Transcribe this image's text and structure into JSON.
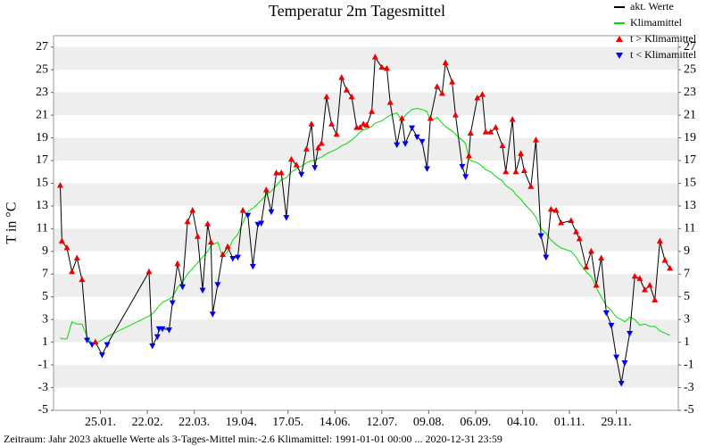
{
  "chart_data": {
    "type": "line",
    "title": "Temperatur 2m Tagesmittel",
    "y_label": "T in °C",
    "footer": "Zeitraum: Jahr 2023   aktuelle Werte als 3-Tages-Mittel min:-2.6  Klimamittel: 1991-01-01 00:00 ... 2020-12-31 23:59",
    "x": [
      1,
      2,
      5,
      8,
      11,
      14,
      17,
      20,
      22,
      26,
      29,
      54,
      56,
      59,
      60,
      62,
      66,
      68,
      71,
      74,
      77,
      80,
      83,
      86,
      89,
      91,
      92,
      95,
      98,
      101,
      104,
      107,
      110,
      113,
      116,
      119,
      121,
      124,
      127,
      130,
      133,
      136,
      139,
      142,
      145,
      148,
      151,
      153,
      155,
      157,
      160,
      163,
      166,
      169,
      172,
      175,
      178,
      180,
      182,
      184,
      187,
      189,
      193,
      196,
      198,
      202,
      205,
      207,
      211,
      214,
      217,
      220,
      222,
      226,
      229,
      231,
      235,
      237,
      241,
      243,
      245,
      246,
      250,
      253,
      255,
      258,
      261,
      265,
      267,
      271,
      273,
      276,
      278,
      282,
      285,
      288,
      291,
      294,
      297,
      300,
      306,
      309,
      311,
      315,
      318,
      321,
      324,
      327,
      330,
      333,
      336,
      338,
      341,
      344,
      347,
      350,
      353,
      356,
      359,
      362,
      365
    ],
    "series": [
      {
        "name": "akt. Werte",
        "color": "#000000",
        "values": [
          14.8,
          9.9,
          9.3,
          7.2,
          8.4,
          6.5,
          1.2,
          0.8,
          1.0,
          -0.1,
          0.8,
          7.2,
          0.7,
          1.5,
          2.2,
          2.2,
          2.1,
          4.5,
          7.9,
          5.9,
          11.6,
          12.6,
          10.3,
          5.6,
          11.4,
          9.8,
          3.5,
          6.1,
          8.7,
          9.4,
          8.4,
          8.5,
          12.6,
          12.2,
          7.7,
          11.4,
          11.5,
          14.4,
          12.5,
          15.9,
          15.9,
          12.0,
          17.1,
          16.6,
          15.8,
          18.0,
          20.2,
          16.4,
          18.1,
          18.5,
          22.6,
          20.2,
          19.3,
          24.3,
          23.2,
          22.6,
          19.9,
          19.9,
          20.2,
          20.1,
          21.3,
          26.1,
          25.2,
          25.1,
          22.1,
          18.4,
          20.7,
          18.5,
          19.9,
          19.1,
          18.7,
          16.3,
          20.7,
          23.5,
          22.9,
          25.6,
          23.9,
          21.0,
          16.5,
          15.6,
          17.4,
          19.4,
          22.5,
          22.8,
          19.5,
          19.5,
          19.9,
          18.3,
          16.0,
          20.6,
          16.0,
          17.6,
          16.1,
          14.7,
          18.8,
          10.4,
          8.5,
          12.7,
          12.6,
          11.5,
          11.7,
          10.7,
          10.1,
          7.6,
          9.0,
          6.0,
          8.4,
          3.6,
          2.5,
          -0.3,
          -2.6,
          -0.8,
          1.8,
          6.8,
          6.6,
          5.6,
          6.0,
          4.7,
          9.9,
          8.2,
          7.5
        ]
      },
      {
        "name": "Klimamittel",
        "color": "#00dd00",
        "values": [
          1.4,
          1.3,
          1.3,
          2.8,
          2.6,
          2.6,
          1.5,
          0.9,
          0.9,
          1.2,
          1.5,
          3.3,
          3.5,
          4.0,
          4.2,
          4.5,
          4.8,
          5.0,
          5.8,
          6.3,
          7.0,
          7.5,
          8.0,
          8.5,
          9.0,
          9.5,
          9.6,
          9.8,
          8.5,
          9.0,
          10.0,
          10.5,
          11.5,
          12.5,
          12.8,
          13.2,
          13.5,
          14.0,
          14.3,
          14.8,
          15.3,
          15.5,
          16.0,
          16.3,
          16.5,
          16.8,
          17.0,
          17.0,
          17.2,
          17.3,
          17.6,
          17.8,
          18.0,
          18.3,
          18.5,
          18.8,
          19.2,
          19.5,
          19.7,
          19.8,
          20.0,
          20.3,
          20.5,
          20.8,
          21.0,
          21.2,
          20.5,
          21.0,
          21.5,
          21.6,
          21.5,
          21.3,
          20.5,
          20.8,
          20.3,
          20.0,
          19.6,
          19.3,
          18.8,
          18.5,
          17.2,
          17.0,
          16.8,
          16.5,
          16.2,
          16.0,
          15.6,
          15.2,
          14.8,
          14.4,
          14.0,
          13.6,
          13.2,
          12.6,
          12.0,
          11.0,
          10.6,
          10.0,
          9.6,
          9.3,
          9.0,
          8.5,
          8.0,
          7.2,
          6.8,
          5.8,
          5.0,
          4.2,
          3.8,
          3.2,
          3.0,
          2.8,
          3.2,
          3.0,
          2.5,
          2.6,
          2.4,
          2.4,
          2.0,
          1.8,
          1.6
        ]
      }
    ],
    "marker_legend": [
      {
        "name": "t > Klimamittel",
        "color": "#ee0000"
      },
      {
        "name": "t < Klimamittel",
        "color": "#0000ee"
      }
    ],
    "xlim": [
      -3,
      370
    ],
    "xticks": [
      {
        "value": 25,
        "label": "25.01."
      },
      {
        "value": 53,
        "label": "22.02."
      },
      {
        "value": 81,
        "label": "22.03."
      },
      {
        "value": 109,
        "label": "19.04."
      },
      {
        "value": 137,
        "label": "17.05."
      },
      {
        "value": 165,
        "label": "14.06."
      },
      {
        "value": 193,
        "label": "12.07."
      },
      {
        "value": 221,
        "label": "09.08."
      },
      {
        "value": 249,
        "label": "06.09."
      },
      {
        "value": 277,
        "label": "04.10."
      },
      {
        "value": 305,
        "label": "01.11."
      },
      {
        "value": 333,
        "label": "29.11."
      }
    ],
    "ylim": [
      -5,
      28
    ],
    "yticks": [
      -5,
      -3,
      -1,
      1,
      3,
      5,
      7,
      9,
      11,
      13,
      15,
      17,
      19,
      21,
      23,
      25,
      27
    ],
    "grid": "bands",
    "legend": "top-right"
  }
}
